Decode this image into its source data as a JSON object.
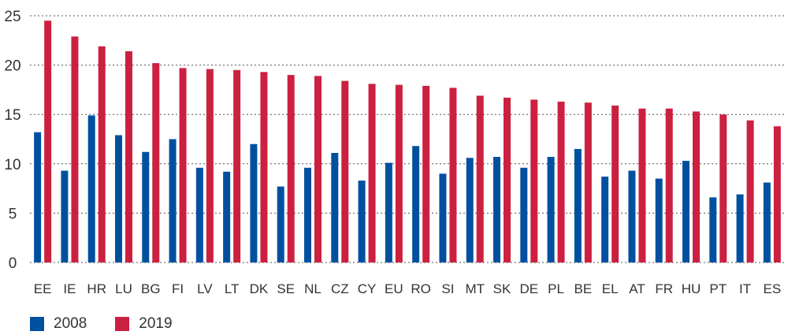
{
  "chart_data": {
    "type": "bar",
    "categories": [
      "EE",
      "IE",
      "HR",
      "LU",
      "BG",
      "FI",
      "LV",
      "LT",
      "DK",
      "SE",
      "NL",
      "CZ",
      "CY",
      "EU",
      "RO",
      "SI",
      "MT",
      "SK",
      "DE",
      "PL",
      "BE",
      "EL",
      "AT",
      "FR",
      "HU",
      "PT",
      "IT",
      "ES"
    ],
    "series": [
      {
        "name": "2008",
        "color": "#0050a0",
        "values": [
          13.2,
          9.3,
          14.9,
          12.9,
          11.2,
          12.5,
          9.6,
          9.2,
          12.0,
          7.7,
          9.6,
          11.1,
          8.3,
          10.1,
          11.8,
          9.0,
          10.6,
          10.7,
          9.6,
          10.7,
          11.5,
          8.7,
          9.3,
          8.5,
          10.3,
          6.6,
          6.9,
          8.1
        ]
      },
      {
        "name": "2019",
        "color": "#cc2040",
        "values": [
          24.5,
          22.9,
          21.9,
          21.4,
          20.2,
          19.7,
          19.6,
          19.5,
          19.3,
          19.0,
          18.9,
          18.4,
          18.1,
          18.0,
          17.9,
          17.7,
          16.9,
          16.7,
          16.5,
          16.3,
          16.2,
          15.9,
          15.6,
          15.6,
          15.3,
          15.0,
          14.4,
          13.8
        ]
      }
    ],
    "ylim": [
      0,
      25
    ],
    "yticks": [
      0,
      5,
      10,
      15,
      20,
      25
    ],
    "grid": true,
    "legend": "bottom-left"
  }
}
